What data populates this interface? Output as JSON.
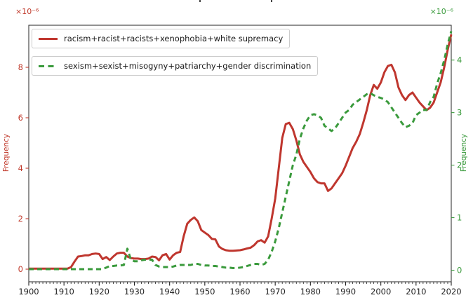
{
  "figure": {
    "background": "#ffffff",
    "frame_color": "#262626",
    "clipped_title_visible": true
  },
  "chart_data": {
    "type": "line",
    "title": "",
    "xlabel": "",
    "ylabel_left": "Frequency",
    "ylabel_right": "Frequency",
    "left_offset_label": "×10⁻⁶",
    "right_offset_label": "×10⁻⁶",
    "left_axis_color": "#c0392b",
    "right_axis_color": "#3a9a3c",
    "x_tick_color": "#222222",
    "xlim": [
      1900,
      2020
    ],
    "left_ylim": [
      -0.5,
      9.667
    ],
    "right_ylim": [
      -0.22,
      4.663
    ],
    "x_ticks": [
      1900,
      1910,
      1920,
      1930,
      1940,
      1950,
      1960,
      1970,
      1980,
      1990,
      2000,
      2010,
      2020
    ],
    "x_minor_tick_step": 1,
    "left_ticks": [
      0,
      2,
      4,
      6,
      8
    ],
    "right_ticks": [
      0,
      1,
      2,
      3,
      4
    ],
    "grid": false,
    "legend_position": "upper-left",
    "x_start": 1900,
    "x_step": 1,
    "series": [
      {
        "name": "racism+racist+racists+xenophobia+white supremacy",
        "axis": "left",
        "color": "#bf362e",
        "style": "solid",
        "line_width": 3,
        "values": [
          0.02,
          0.02,
          0.02,
          0.02,
          0.02,
          0.02,
          0.02,
          0.02,
          0.02,
          0.02,
          0.02,
          0.02,
          0.08,
          0.3,
          0.5,
          0.52,
          0.55,
          0.55,
          0.6,
          0.62,
          0.6,
          0.4,
          0.48,
          0.36,
          0.5,
          0.62,
          0.65,
          0.65,
          0.5,
          0.44,
          0.42,
          0.42,
          0.4,
          0.4,
          0.42,
          0.5,
          0.48,
          0.35,
          0.55,
          0.6,
          0.38,
          0.55,
          0.65,
          0.68,
          1.3,
          1.8,
          1.95,
          2.05,
          1.9,
          1.55,
          1.45,
          1.35,
          1.2,
          1.18,
          0.9,
          0.8,
          0.75,
          0.73,
          0.73,
          0.74,
          0.75,
          0.78,
          0.82,
          0.85,
          0.95,
          1.1,
          1.15,
          1.05,
          1.3,
          2.0,
          2.8,
          4.0,
          5.2,
          5.75,
          5.8,
          5.55,
          5.1,
          4.55,
          4.25,
          4.05,
          3.85,
          3.6,
          3.45,
          3.4,
          3.4,
          3.1,
          3.2,
          3.4,
          3.6,
          3.8,
          4.1,
          4.45,
          4.8,
          5.05,
          5.35,
          5.8,
          6.3,
          6.9,
          7.3,
          7.15,
          7.4,
          7.8,
          8.05,
          8.1,
          7.8,
          7.2,
          6.9,
          6.7,
          6.9,
          7.0,
          6.8,
          6.6,
          6.45,
          6.3,
          6.4,
          6.6,
          7.0,
          7.4,
          8.0,
          8.7,
          9.3
        ]
      },
      {
        "name": "sexism+sexist+misogyny+patriarchy+gender discrimination",
        "axis": "right",
        "color": "#3a9a3c",
        "style": "dashed",
        "line_width": 3,
        "values": [
          0.02,
          0.02,
          0.02,
          0.02,
          0.02,
          0.02,
          0.02,
          0.02,
          0.02,
          0.02,
          0.02,
          0.02,
          0.02,
          0.02,
          0.02,
          0.02,
          0.02,
          0.02,
          0.02,
          0.02,
          0.02,
          0.02,
          0.05,
          0.08,
          0.08,
          0.09,
          0.09,
          0.1,
          0.41,
          0.2,
          0.17,
          0.17,
          0.19,
          0.2,
          0.2,
          0.2,
          0.1,
          0.07,
          0.06,
          0.06,
          0.06,
          0.07,
          0.09,
          0.1,
          0.1,
          0.1,
          0.1,
          0.12,
          0.12,
          0.1,
          0.09,
          0.09,
          0.08,
          0.08,
          0.07,
          0.06,
          0.05,
          0.05,
          0.04,
          0.04,
          0.05,
          0.06,
          0.08,
          0.1,
          0.12,
          0.12,
          0.1,
          0.12,
          0.2,
          0.35,
          0.55,
          0.8,
          1.1,
          1.4,
          1.7,
          2.0,
          2.2,
          2.5,
          2.7,
          2.85,
          2.95,
          2.97,
          2.95,
          2.9,
          2.75,
          2.7,
          2.65,
          2.7,
          2.8,
          2.9,
          3.0,
          3.05,
          3.15,
          3.2,
          3.25,
          3.3,
          3.35,
          3.37,
          3.33,
          3.3,
          3.28,
          3.25,
          3.2,
          3.1,
          3.0,
          2.9,
          2.8,
          2.72,
          2.75,
          2.8,
          2.95,
          3.0,
          3.05,
          3.05,
          3.2,
          3.3,
          3.55,
          3.75,
          4.0,
          4.3,
          4.55
        ]
      }
    ]
  }
}
